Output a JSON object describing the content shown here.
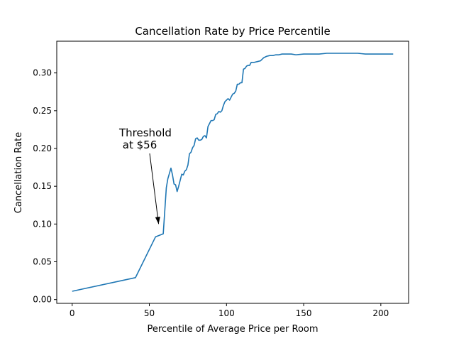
{
  "chart_data": {
    "type": "line",
    "title": "Cancellation Rate by Price Percentile",
    "xlabel": "Percentile of Average Price per Room",
    "ylabel": "Cancellation Rate",
    "xlim": [
      -10,
      218
    ],
    "ylim": [
      -0.005,
      0.342
    ],
    "xticks": [
      0,
      50,
      100,
      150,
      200
    ],
    "xtick_labels": [
      "0",
      "50",
      "100",
      "150",
      "200"
    ],
    "yticks": [
      0.0,
      0.05,
      0.1,
      0.15,
      0.2,
      0.25,
      0.3
    ],
    "ytick_labels": [
      "0.00",
      "0.05",
      "0.10",
      "0.15",
      "0.20",
      "0.25",
      "0.30"
    ],
    "grid": false,
    "line_color": "#1f77b4",
    "series": [
      {
        "name": "",
        "x": [
          0,
          41,
          54,
          59,
          61,
          62,
          64,
          65,
          66,
          67,
          68,
          69,
          70,
          71,
          72,
          73,
          74,
          75,
          76,
          77,
          78,
          79,
          80,
          81,
          82,
          83,
          84,
          85,
          86,
          87,
          88,
          89,
          90,
          91,
          92,
          93,
          94,
          95,
          96,
          97,
          98,
          99,
          100,
          101,
          102,
          103,
          104,
          105,
          106,
          107,
          108,
          109,
          110,
          111,
          112,
          113,
          114,
          115,
          116,
          117,
          118,
          120,
          122,
          124,
          126,
          128,
          130,
          132,
          134,
          136,
          138,
          140,
          142,
          145,
          150,
          155,
          160,
          165,
          170,
          175,
          180,
          185,
          190,
          195,
          200,
          205,
          208
        ],
        "y": [
          0.011,
          0.029,
          0.083,
          0.087,
          0.148,
          0.16,
          0.174,
          0.165,
          0.153,
          0.152,
          0.143,
          0.15,
          0.158,
          0.166,
          0.165,
          0.17,
          0.172,
          0.178,
          0.193,
          0.195,
          0.201,
          0.204,
          0.213,
          0.214,
          0.211,
          0.211,
          0.212,
          0.216,
          0.217,
          0.214,
          0.229,
          0.233,
          0.237,
          0.237,
          0.238,
          0.245,
          0.246,
          0.249,
          0.248,
          0.25,
          0.257,
          0.262,
          0.264,
          0.266,
          0.264,
          0.268,
          0.272,
          0.273,
          0.276,
          0.285,
          0.285,
          0.287,
          0.287,
          0.305,
          0.306,
          0.309,
          0.31,
          0.31,
          0.314,
          0.314,
          0.314,
          0.315,
          0.316,
          0.32,
          0.322,
          0.323,
          0.323,
          0.324,
          0.324,
          0.325,
          0.325,
          0.325,
          0.325,
          0.324,
          0.325,
          0.325,
          0.325,
          0.326,
          0.326,
          0.326,
          0.326,
          0.326,
          0.325,
          0.325,
          0.325,
          0.325,
          0.325
        ]
      }
    ],
    "annotations": [
      {
        "lines": [
          "Threshold",
          " at $56"
        ],
        "target_x": 56,
        "target_y": 0.1
      }
    ]
  }
}
